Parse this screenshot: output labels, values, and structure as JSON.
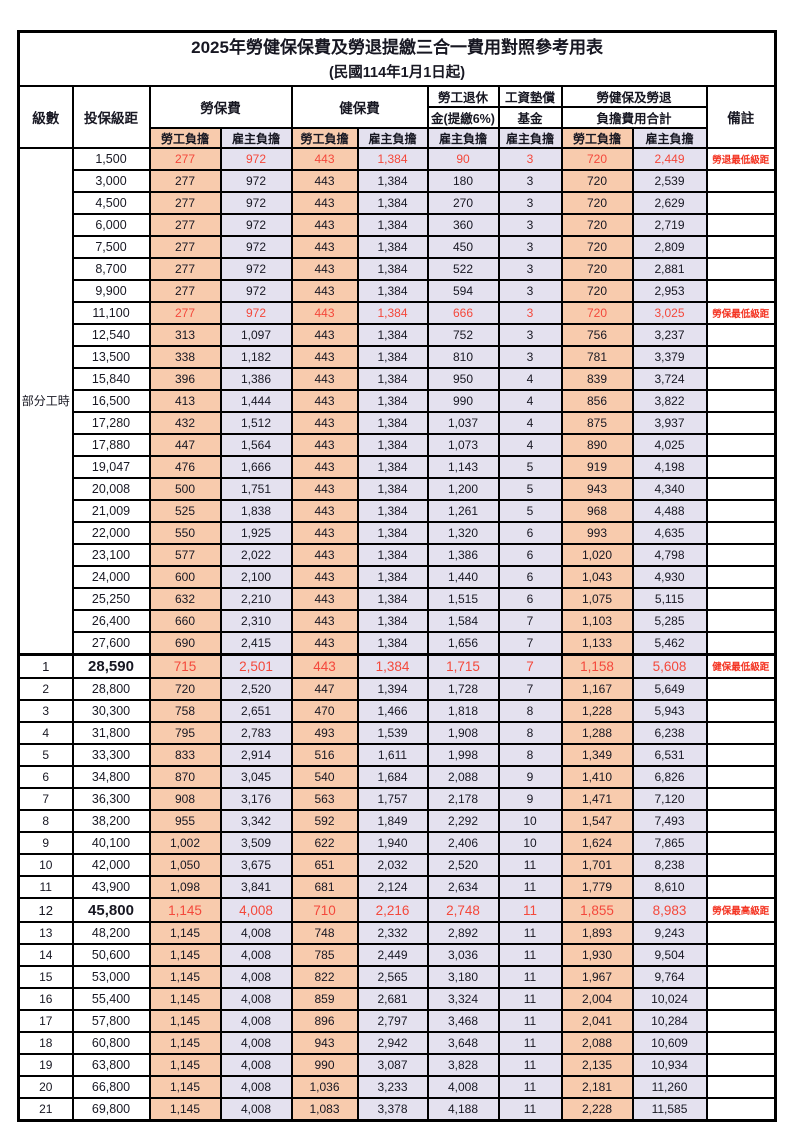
{
  "title": "2025年勞健保保費及勞退提繳三合一費用對照參考用表",
  "subtitle": "(民國114年1月1日起)",
  "header": {
    "level": "級數",
    "salary_bracket": "投保級距",
    "labor_insurance": "勞保費",
    "health_insurance": "健保費",
    "pension_line1": "勞工退休",
    "pension_line2": "金(提繳6%)",
    "wage_fund_line1": "工資墊償",
    "wage_fund_line2": "基金",
    "total_line1": "勞健保及勞退",
    "total_line2": "負擔費用合計",
    "remark": "備註",
    "employee_burden": "勞工負擔",
    "employer_burden": "雇主負擔"
  },
  "colors": {
    "employee_bg": "#F8CBAD",
    "employer_bg": "#E4E1EF",
    "highlight_red": "#F4483B",
    "remark_red": "#F43321",
    "text": "#171722"
  },
  "sections": [
    {
      "group_label": "部分工時",
      "rows": [
        {
          "salary": "1,500",
          "li_emp": "277",
          "li_er": "972",
          "hi_emp": "443",
          "hi_er": "1,384",
          "pension": "90",
          "wage_fund": "3",
          "tot_emp": "720",
          "tot_er": "2,449",
          "remark": "勞退最低級距",
          "highlight": true
        },
        {
          "salary": "3,000",
          "li_emp": "277",
          "li_er": "972",
          "hi_emp": "443",
          "hi_er": "1,384",
          "pension": "180",
          "wage_fund": "3",
          "tot_emp": "720",
          "tot_er": "2,539",
          "remark": ""
        },
        {
          "salary": "4,500",
          "li_emp": "277",
          "li_er": "972",
          "hi_emp": "443",
          "hi_er": "1,384",
          "pension": "270",
          "wage_fund": "3",
          "tot_emp": "720",
          "tot_er": "2,629",
          "remark": ""
        },
        {
          "salary": "6,000",
          "li_emp": "277",
          "li_er": "972",
          "hi_emp": "443",
          "hi_er": "1,384",
          "pension": "360",
          "wage_fund": "3",
          "tot_emp": "720",
          "tot_er": "2,719",
          "remark": ""
        },
        {
          "salary": "7,500",
          "li_emp": "277",
          "li_er": "972",
          "hi_emp": "443",
          "hi_er": "1,384",
          "pension": "450",
          "wage_fund": "3",
          "tot_emp": "720",
          "tot_er": "2,809",
          "remark": ""
        },
        {
          "salary": "8,700",
          "li_emp": "277",
          "li_er": "972",
          "hi_emp": "443",
          "hi_er": "1,384",
          "pension": "522",
          "wage_fund": "3",
          "tot_emp": "720",
          "tot_er": "2,881",
          "remark": ""
        },
        {
          "salary": "9,900",
          "li_emp": "277",
          "li_er": "972",
          "hi_emp": "443",
          "hi_er": "1,384",
          "pension": "594",
          "wage_fund": "3",
          "tot_emp": "720",
          "tot_er": "2,953",
          "remark": ""
        },
        {
          "salary": "11,100",
          "li_emp": "277",
          "li_er": "972",
          "hi_emp": "443",
          "hi_er": "1,384",
          "pension": "666",
          "wage_fund": "3",
          "tot_emp": "720",
          "tot_er": "3,025",
          "remark": "勞保最低級距",
          "highlight": true
        },
        {
          "salary": "12,540",
          "li_emp": "313",
          "li_er": "1,097",
          "hi_emp": "443",
          "hi_er": "1,384",
          "pension": "752",
          "wage_fund": "3",
          "tot_emp": "756",
          "tot_er": "3,237",
          "remark": ""
        },
        {
          "salary": "13,500",
          "li_emp": "338",
          "li_er": "1,182",
          "hi_emp": "443",
          "hi_er": "1,384",
          "pension": "810",
          "wage_fund": "3",
          "tot_emp": "781",
          "tot_er": "3,379",
          "remark": ""
        },
        {
          "salary": "15,840",
          "li_emp": "396",
          "li_er": "1,386",
          "hi_emp": "443",
          "hi_er": "1,384",
          "pension": "950",
          "wage_fund": "4",
          "tot_emp": "839",
          "tot_er": "3,724",
          "remark": ""
        },
        {
          "salary": "16,500",
          "li_emp": "413",
          "li_er": "1,444",
          "hi_emp": "443",
          "hi_er": "1,384",
          "pension": "990",
          "wage_fund": "4",
          "tot_emp": "856",
          "tot_er": "3,822",
          "remark": ""
        },
        {
          "salary": "17,280",
          "li_emp": "432",
          "li_er": "1,512",
          "hi_emp": "443",
          "hi_er": "1,384",
          "pension": "1,037",
          "wage_fund": "4",
          "tot_emp": "875",
          "tot_er": "3,937",
          "remark": ""
        },
        {
          "salary": "17,880",
          "li_emp": "447",
          "li_er": "1,564",
          "hi_emp": "443",
          "hi_er": "1,384",
          "pension": "1,073",
          "wage_fund": "4",
          "tot_emp": "890",
          "tot_er": "4,025",
          "remark": ""
        },
        {
          "salary": "19,047",
          "li_emp": "476",
          "li_er": "1,666",
          "hi_emp": "443",
          "hi_er": "1,384",
          "pension": "1,143",
          "wage_fund": "5",
          "tot_emp": "919",
          "tot_er": "4,198",
          "remark": ""
        },
        {
          "salary": "20,008",
          "li_emp": "500",
          "li_er": "1,751",
          "hi_emp": "443",
          "hi_er": "1,384",
          "pension": "1,200",
          "wage_fund": "5",
          "tot_emp": "943",
          "tot_er": "4,340",
          "remark": ""
        },
        {
          "salary": "21,009",
          "li_emp": "525",
          "li_er": "1,838",
          "hi_emp": "443",
          "hi_er": "1,384",
          "pension": "1,261",
          "wage_fund": "5",
          "tot_emp": "968",
          "tot_er": "4,488",
          "remark": ""
        },
        {
          "salary": "22,000",
          "li_emp": "550",
          "li_er": "1,925",
          "hi_emp": "443",
          "hi_er": "1,384",
          "pension": "1,320",
          "wage_fund": "6",
          "tot_emp": "993",
          "tot_er": "4,635",
          "remark": ""
        },
        {
          "salary": "23,100",
          "li_emp": "577",
          "li_er": "2,022",
          "hi_emp": "443",
          "hi_er": "1,384",
          "pension": "1,386",
          "wage_fund": "6",
          "tot_emp": "1,020",
          "tot_er": "4,798",
          "remark": ""
        },
        {
          "salary": "24,000",
          "li_emp": "600",
          "li_er": "2,100",
          "hi_emp": "443",
          "hi_er": "1,384",
          "pension": "1,440",
          "wage_fund": "6",
          "tot_emp": "1,043",
          "tot_er": "4,930",
          "remark": ""
        },
        {
          "salary": "25,250",
          "li_emp": "632",
          "li_er": "2,210",
          "hi_emp": "443",
          "hi_er": "1,384",
          "pension": "1,515",
          "wage_fund": "6",
          "tot_emp": "1,075",
          "tot_er": "5,115",
          "remark": ""
        },
        {
          "salary": "26,400",
          "li_emp": "660",
          "li_er": "2,310",
          "hi_emp": "443",
          "hi_er": "1,384",
          "pension": "1,584",
          "wage_fund": "7",
          "tot_emp": "1,103",
          "tot_er": "5,285",
          "remark": ""
        },
        {
          "salary": "27,600",
          "li_emp": "690",
          "li_er": "2,415",
          "hi_emp": "443",
          "hi_er": "1,384",
          "pension": "1,656",
          "wage_fund": "7",
          "tot_emp": "1,133",
          "tot_er": "5,462",
          "remark": ""
        }
      ]
    },
    {
      "group_label": null,
      "rows": [
        {
          "level": "1",
          "salary": "28,590",
          "li_emp": "715",
          "li_er": "2,501",
          "hi_emp": "443",
          "hi_er": "1,384",
          "pension": "1,715",
          "wage_fund": "7",
          "tot_emp": "1,158",
          "tot_er": "5,608",
          "remark": "健保最低級距",
          "highlight": true,
          "big": true,
          "separator_top": true
        },
        {
          "level": "2",
          "salary": "28,800",
          "li_emp": "720",
          "li_er": "2,520",
          "hi_emp": "447",
          "hi_er": "1,394",
          "pension": "1,728",
          "wage_fund": "7",
          "tot_emp": "1,167",
          "tot_er": "5,649",
          "remark": ""
        },
        {
          "level": "3",
          "salary": "30,300",
          "li_emp": "758",
          "li_er": "2,651",
          "hi_emp": "470",
          "hi_er": "1,466",
          "pension": "1,818",
          "wage_fund": "8",
          "tot_emp": "1,228",
          "tot_er": "5,943",
          "remark": ""
        },
        {
          "level": "4",
          "salary": "31,800",
          "li_emp": "795",
          "li_er": "2,783",
          "hi_emp": "493",
          "hi_er": "1,539",
          "pension": "1,908",
          "wage_fund": "8",
          "tot_emp": "1,288",
          "tot_er": "6,238",
          "remark": ""
        },
        {
          "level": "5",
          "salary": "33,300",
          "li_emp": "833",
          "li_er": "2,914",
          "hi_emp": "516",
          "hi_er": "1,611",
          "pension": "1,998",
          "wage_fund": "8",
          "tot_emp": "1,349",
          "tot_er": "6,531",
          "remark": ""
        },
        {
          "level": "6",
          "salary": "34,800",
          "li_emp": "870",
          "li_er": "3,045",
          "hi_emp": "540",
          "hi_er": "1,684",
          "pension": "2,088",
          "wage_fund": "9",
          "tot_emp": "1,410",
          "tot_er": "6,826",
          "remark": ""
        },
        {
          "level": "7",
          "salary": "36,300",
          "li_emp": "908",
          "li_er": "3,176",
          "hi_emp": "563",
          "hi_er": "1,757",
          "pension": "2,178",
          "wage_fund": "9",
          "tot_emp": "1,471",
          "tot_er": "7,120",
          "remark": ""
        },
        {
          "level": "8",
          "salary": "38,200",
          "li_emp": "955",
          "li_er": "3,342",
          "hi_emp": "592",
          "hi_er": "1,849",
          "pension": "2,292",
          "wage_fund": "10",
          "tot_emp": "1,547",
          "tot_er": "7,493",
          "remark": ""
        },
        {
          "level": "9",
          "salary": "40,100",
          "li_emp": "1,002",
          "li_er": "3,509",
          "hi_emp": "622",
          "hi_er": "1,940",
          "pension": "2,406",
          "wage_fund": "10",
          "tot_emp": "1,624",
          "tot_er": "7,865",
          "remark": ""
        },
        {
          "level": "10",
          "salary": "42,000",
          "li_emp": "1,050",
          "li_er": "3,675",
          "hi_emp": "651",
          "hi_er": "2,032",
          "pension": "2,520",
          "wage_fund": "11",
          "tot_emp": "1,701",
          "tot_er": "8,238",
          "remark": ""
        },
        {
          "level": "11",
          "salary": "43,900",
          "li_emp": "1,098",
          "li_er": "3,841",
          "hi_emp": "681",
          "hi_er": "2,124",
          "pension": "2,634",
          "wage_fund": "11",
          "tot_emp": "1,779",
          "tot_er": "8,610",
          "remark": ""
        },
        {
          "level": "12",
          "salary": "45,800",
          "li_emp": "1,145",
          "li_er": "4,008",
          "hi_emp": "710",
          "hi_er": "2,216",
          "pension": "2,748",
          "wage_fund": "11",
          "tot_emp": "1,855",
          "tot_er": "8,983",
          "remark": "勞保最高級距",
          "highlight": true,
          "big": true
        },
        {
          "level": "13",
          "salary": "48,200",
          "li_emp": "1,145",
          "li_er": "4,008",
          "hi_emp": "748",
          "hi_er": "2,332",
          "pension": "2,892",
          "wage_fund": "11",
          "tot_emp": "1,893",
          "tot_er": "9,243",
          "remark": ""
        },
        {
          "level": "14",
          "salary": "50,600",
          "li_emp": "1,145",
          "li_er": "4,008",
          "hi_emp": "785",
          "hi_er": "2,449",
          "pension": "3,036",
          "wage_fund": "11",
          "tot_emp": "1,930",
          "tot_er": "9,504",
          "remark": ""
        },
        {
          "level": "15",
          "salary": "53,000",
          "li_emp": "1,145",
          "li_er": "4,008",
          "hi_emp": "822",
          "hi_er": "2,565",
          "pension": "3,180",
          "wage_fund": "11",
          "tot_emp": "1,967",
          "tot_er": "9,764",
          "remark": ""
        },
        {
          "level": "16",
          "salary": "55,400",
          "li_emp": "1,145",
          "li_er": "4,008",
          "hi_emp": "859",
          "hi_er": "2,681",
          "pension": "3,324",
          "wage_fund": "11",
          "tot_emp": "2,004",
          "tot_er": "10,024",
          "remark": ""
        },
        {
          "level": "17",
          "salary": "57,800",
          "li_emp": "1,145",
          "li_er": "4,008",
          "hi_emp": "896",
          "hi_er": "2,797",
          "pension": "3,468",
          "wage_fund": "11",
          "tot_emp": "2,041",
          "tot_er": "10,284",
          "remark": ""
        },
        {
          "level": "18",
          "salary": "60,800",
          "li_emp": "1,145",
          "li_er": "4,008",
          "hi_emp": "943",
          "hi_er": "2,942",
          "pension": "3,648",
          "wage_fund": "11",
          "tot_emp": "2,088",
          "tot_er": "10,609",
          "remark": ""
        },
        {
          "level": "19",
          "salary": "63,800",
          "li_emp": "1,145",
          "li_er": "4,008",
          "hi_emp": "990",
          "hi_er": "3,087",
          "pension": "3,828",
          "wage_fund": "11",
          "tot_emp": "2,135",
          "tot_er": "10,934",
          "remark": ""
        },
        {
          "level": "20",
          "salary": "66,800",
          "li_emp": "1,145",
          "li_er": "4,008",
          "hi_emp": "1,036",
          "hi_er": "3,233",
          "pension": "4,008",
          "wage_fund": "11",
          "tot_emp": "2,181",
          "tot_er": "11,260",
          "remark": ""
        },
        {
          "level": "21",
          "salary": "69,800",
          "li_emp": "1,145",
          "li_er": "4,008",
          "hi_emp": "1,083",
          "hi_er": "3,378",
          "pension": "4,188",
          "wage_fund": "11",
          "tot_emp": "2,228",
          "tot_er": "11,585",
          "remark": ""
        }
      ]
    }
  ]
}
